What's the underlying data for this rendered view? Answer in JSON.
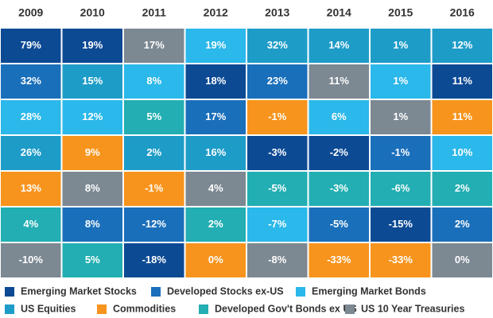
{
  "table": {
    "columns": [
      {
        "year": "2009",
        "cells": [
          {
            "text": "79%",
            "asset": 0
          },
          {
            "text": "32%",
            "asset": 1
          },
          {
            "text": "28%",
            "asset": 2
          },
          {
            "text": "26%",
            "asset": 3
          },
          {
            "text": "13%",
            "asset": 4
          },
          {
            "text": "4%",
            "asset": 5
          },
          {
            "text": "-10%",
            "asset": 6
          }
        ]
      },
      {
        "year": "2010",
        "cells": [
          {
            "text": "19%",
            "asset": 0
          },
          {
            "text": "15%",
            "asset": 3
          },
          {
            "text": "12%",
            "asset": 2
          },
          {
            "text": "9%",
            "asset": 4
          },
          {
            "text": "8%",
            "asset": 6
          },
          {
            "text": "8%",
            "asset": 1
          },
          {
            "text": "5%",
            "asset": 5
          }
        ]
      },
      {
        "year": "2011",
        "cells": [
          {
            "text": "17%",
            "asset": 6
          },
          {
            "text": "8%",
            "asset": 2
          },
          {
            "text": "5%",
            "asset": 5
          },
          {
            "text": "2%",
            "asset": 3
          },
          {
            "text": "-1%",
            "asset": 4
          },
          {
            "text": "-12%",
            "asset": 1
          },
          {
            "text": "-18%",
            "asset": 0
          }
        ]
      },
      {
        "year": "2012",
        "cells": [
          {
            "text": "19%",
            "asset": 2
          },
          {
            "text": "18%",
            "asset": 0
          },
          {
            "text": "17%",
            "asset": 1
          },
          {
            "text": "16%",
            "asset": 3
          },
          {
            "text": "4%",
            "asset": 6
          },
          {
            "text": "2%",
            "asset": 5
          },
          {
            "text": "0%",
            "asset": 4
          }
        ]
      },
      {
        "year": "2013",
        "cells": [
          {
            "text": "32%",
            "asset": 3
          },
          {
            "text": "23%",
            "asset": 1
          },
          {
            "text": "-1%",
            "asset": 4
          },
          {
            "text": "-3%",
            "asset": 0
          },
          {
            "text": "-5%",
            "asset": 5
          },
          {
            "text": "-7%",
            "asset": 2
          },
          {
            "text": "-8%",
            "asset": 6
          }
        ]
      },
      {
        "year": "2014",
        "cells": [
          {
            "text": "14%",
            "asset": 3
          },
          {
            "text": "11%",
            "asset": 6
          },
          {
            "text": "6%",
            "asset": 2
          },
          {
            "text": "-2%",
            "asset": 0
          },
          {
            "text": "-3%",
            "asset": 5
          },
          {
            "text": "-5%",
            "asset": 1
          },
          {
            "text": "-33%",
            "asset": 4
          }
        ]
      },
      {
        "year": "2015",
        "cells": [
          {
            "text": "1%",
            "asset": 3
          },
          {
            "text": "1%",
            "asset": 2
          },
          {
            "text": "1%",
            "asset": 6
          },
          {
            "text": "-1%",
            "asset": 1
          },
          {
            "text": "-6%",
            "asset": 5
          },
          {
            "text": "-15%",
            "asset": 0
          },
          {
            "text": "-33%",
            "asset": 4
          }
        ]
      },
      {
        "year": "2016",
        "cells": [
          {
            "text": "12%",
            "asset": 3
          },
          {
            "text": "11%",
            "asset": 0
          },
          {
            "text": "11%",
            "asset": 4
          },
          {
            "text": "10%",
            "asset": 2
          },
          {
            "text": "2%",
            "asset": 5
          },
          {
            "text": "2%",
            "asset": 1
          },
          {
            "text": "0%",
            "asset": 6
          }
        ]
      }
    ]
  },
  "legend": [
    {
      "name": "Emerging Market Stocks",
      "color": "#0d4a94"
    },
    {
      "name": "Developed Stocks ex-US",
      "color": "#1a6fbb"
    },
    {
      "name": "Emerging Market Bonds",
      "color": "#2bb8ea"
    },
    {
      "name": "US Equities",
      "color": "#1e9cc8"
    },
    {
      "name": "Commodities",
      "color": "#f7941d"
    },
    {
      "name": "Developed Gov't Bonds ex US",
      "color": "#22aeb2"
    },
    {
      "name": "US 10 Year Treasuries",
      "color": "#7c8892"
    }
  ]
}
